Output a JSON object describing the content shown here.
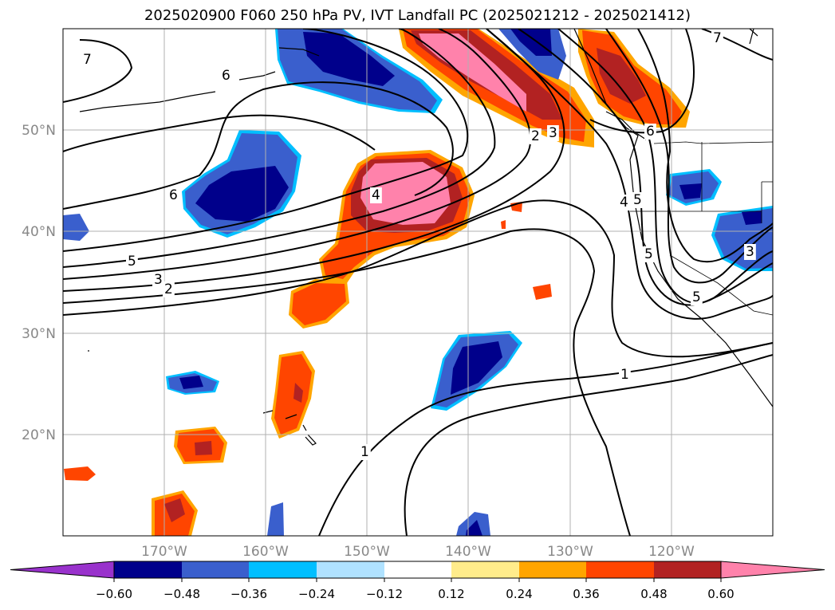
{
  "title": "2025020900 F060 250 hPa PV, IVT Landfall PC (2025021212 - 2025021412)",
  "lon_labels": [
    "170°W",
    "160°W",
    "150°W",
    "140°W",
    "130°W",
    "120°W"
  ],
  "lat_labels": [
    "50°N",
    "40°N",
    "30°N",
    "20°N"
  ],
  "colorbar": {
    "colors": [
      "#9932cc",
      "#00008b",
      "#3a5fcd",
      "#00bfff",
      "#b0e2ff",
      "#ffffff",
      "#ffec8b",
      "#ffa500",
      "#ff4500",
      "#b22222",
      "#ff82ab"
    ],
    "tick_labels": [
      "−0.60",
      "−0.48",
      "−0.36",
      "−0.24",
      "−0.12",
      "0.12",
      "0.24",
      "0.36",
      "0.48",
      "0.60"
    ]
  },
  "contour_labels": [
    "7",
    "6",
    "6",
    "5",
    "3",
    "2",
    "4",
    "2",
    "3",
    "6",
    "7",
    "4",
    "5",
    "5",
    "3",
    "5",
    "1",
    "1"
  ]
}
